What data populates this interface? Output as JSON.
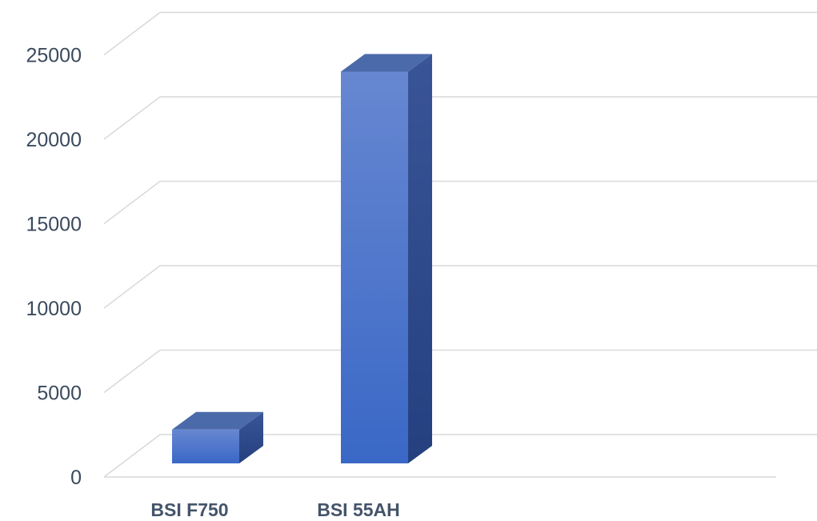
{
  "chart_data": {
    "type": "bar",
    "style": "3d-column",
    "categories": [
      "BSI F750",
      "BSI 55AH"
    ],
    "values": [
      2000,
      23200
    ],
    "ylim": [
      0,
      25000
    ],
    "yticks": [
      "0",
      "5000",
      "10000",
      "15000",
      "20000",
      "25000"
    ],
    "grid": true,
    "legend": "none",
    "title": "",
    "xlabel": "",
    "ylabel": "",
    "colors": {
      "bar_front_top": "#6787d1",
      "bar_front_bottom": "#3a68c6",
      "bar_top": "#4b6aa9",
      "bar_side": "#2c4a8f",
      "grid": "#d9d9d9",
      "axis_text": "#3b4a5e",
      "category_text": "#44546a"
    }
  }
}
